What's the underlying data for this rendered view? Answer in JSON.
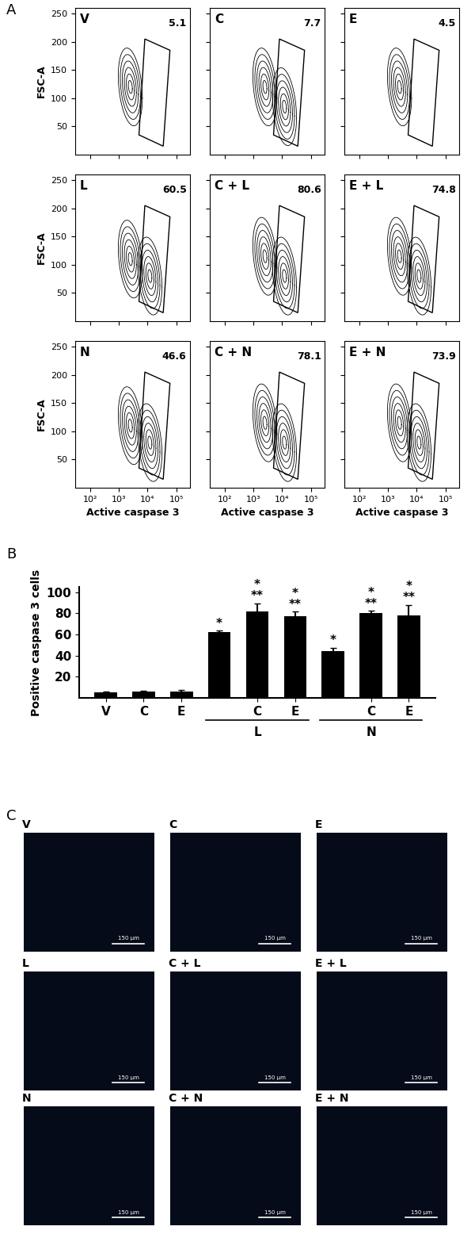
{
  "panel_labels": [
    "A",
    "B",
    "C"
  ],
  "chart_data": [
    {
      "type": "contour",
      "title": "V",
      "ylabel": "FSC-A",
      "tick_labels": "y",
      "log": "x",
      "xlim": [
        30,
        300000
      ],
      "ylim": [
        0,
        260
      ],
      "xticks": [
        {
          "value": 100,
          "label": "10²"
        },
        {
          "value": 1000,
          "label": "10³"
        },
        {
          "value": 10000,
          "label": "10⁴"
        },
        {
          "value": 100000,
          "label": "10⁵"
        }
      ],
      "yticks": [
        50,
        100,
        150,
        200,
        250
      ],
      "gate": [
        [
          5000,
          35
        ],
        [
          35000,
          15
        ],
        [
          60000,
          185
        ],
        [
          8000,
          205
        ]
      ],
      "gate_value": 5.1,
      "populations": [
        {
          "x": 2500,
          "y": 120
        }
      ]
    },
    {
      "type": "contour",
      "title": "C",
      "tick_labels": false,
      "log": "x",
      "xlim": [
        30,
        300000
      ],
      "ylim": [
        0,
        260
      ],
      "xticks": [
        {
          "value": 100,
          "label": "10²"
        },
        {
          "value": 1000,
          "label": "10³"
        },
        {
          "value": 10000,
          "label": "10⁴"
        },
        {
          "value": 100000,
          "label": "10⁵"
        }
      ],
      "yticks": [
        50,
        100,
        150,
        200,
        250
      ],
      "gate": [
        [
          5000,
          35
        ],
        [
          35000,
          15
        ],
        [
          60000,
          185
        ],
        [
          8000,
          205
        ]
      ],
      "gate_value": 7.7,
      "populations": [
        {
          "x": 2500,
          "y": 120
        },
        {
          "x": 12000,
          "y": 85
        }
      ]
    },
    {
      "type": "contour",
      "title": "E",
      "tick_labels": false,
      "log": "x",
      "xlim": [
        30,
        300000
      ],
      "ylim": [
        0,
        260
      ],
      "xticks": [
        {
          "value": 100,
          "label": "10²"
        },
        {
          "value": 1000,
          "label": "10³"
        },
        {
          "value": 10000,
          "label": "10⁴"
        },
        {
          "value": 100000,
          "label": "10⁵"
        }
      ],
      "yticks": [
        50,
        100,
        150,
        200,
        250
      ],
      "gate": [
        [
          5000,
          35
        ],
        [
          35000,
          15
        ],
        [
          60000,
          185
        ],
        [
          8000,
          205
        ]
      ],
      "gate_value": 4.5,
      "populations": [
        {
          "x": 2500,
          "y": 120
        }
      ]
    },
    {
      "type": "contour",
      "title": "L",
      "ylabel": "FSC-A",
      "tick_labels": "y",
      "log": "x",
      "xlim": [
        30,
        300000
      ],
      "ylim": [
        0,
        260
      ],
      "xticks": [
        {
          "value": 100,
          "label": "10²"
        },
        {
          "value": 1000,
          "label": "10³"
        },
        {
          "value": 10000,
          "label": "10⁴"
        },
        {
          "value": 100000,
          "label": "10⁵"
        }
      ],
      "yticks": [
        50,
        100,
        150,
        200,
        250
      ],
      "gate": [
        [
          5000,
          35
        ],
        [
          35000,
          15
        ],
        [
          60000,
          185
        ],
        [
          8000,
          205
        ]
      ],
      "gate_value": 60.5,
      "populations": [
        {
          "x": 2500,
          "y": 110
        },
        {
          "x": 12000,
          "y": 80
        }
      ]
    },
    {
      "type": "contour",
      "title": "C + L",
      "tick_labels": false,
      "log": "x",
      "xlim": [
        30,
        300000
      ],
      "ylim": [
        0,
        260
      ],
      "xticks": [
        {
          "value": 100,
          "label": "10²"
        },
        {
          "value": 1000,
          "label": "10³"
        },
        {
          "value": 10000,
          "label": "10⁴"
        },
        {
          "value": 100000,
          "label": "10⁵"
        }
      ],
      "yticks": [
        50,
        100,
        150,
        200,
        250
      ],
      "gate": [
        [
          5000,
          35
        ],
        [
          35000,
          15
        ],
        [
          60000,
          185
        ],
        [
          8000,
          205
        ]
      ],
      "gate_value": 80.6,
      "populations": [
        {
          "x": 2500,
          "y": 115
        },
        {
          "x": 12000,
          "y": 80
        }
      ]
    },
    {
      "type": "contour",
      "title": "E + L",
      "tick_labels": false,
      "log": "x",
      "xlim": [
        30,
        300000
      ],
      "ylim": [
        0,
        260
      ],
      "xticks": [
        {
          "value": 100,
          "label": "10²"
        },
        {
          "value": 1000,
          "label": "10³"
        },
        {
          "value": 10000,
          "label": "10⁴"
        },
        {
          "value": 100000,
          "label": "10⁵"
        }
      ],
      "yticks": [
        50,
        100,
        150,
        200,
        250
      ],
      "gate": [
        [
          5000,
          35
        ],
        [
          35000,
          15
        ],
        [
          60000,
          185
        ],
        [
          8000,
          205
        ]
      ],
      "gate_value": 74.8,
      "populations": [
        {
          "x": 2500,
          "y": 115
        },
        {
          "x": 12000,
          "y": 80
        }
      ]
    },
    {
      "type": "contour",
      "title": "N",
      "xlabel": "Active caspase 3",
      "ylabel": "FSC-A",
      "log": "x",
      "xlim": [
        30,
        300000
      ],
      "ylim": [
        0,
        260
      ],
      "xticks": [
        {
          "value": 100,
          "label": "10²"
        },
        {
          "value": 1000,
          "label": "10³"
        },
        {
          "value": 10000,
          "label": "10⁴"
        },
        {
          "value": 100000,
          "label": "10⁵"
        }
      ],
      "yticks": [
        50,
        100,
        150,
        200,
        250
      ],
      "gate": [
        [
          5000,
          35
        ],
        [
          35000,
          15
        ],
        [
          60000,
          185
        ],
        [
          8000,
          205
        ]
      ],
      "gate_value": 46.6,
      "populations": [
        {
          "x": 2500,
          "y": 110
        },
        {
          "x": 12000,
          "y": 80
        }
      ]
    },
    {
      "type": "contour",
      "title": "C + N",
      "xlabel": "Active caspase 3",
      "tick_labels": "x",
      "log": "x",
      "xlim": [
        30,
        300000
      ],
      "ylim": [
        0,
        260
      ],
      "xticks": [
        {
          "value": 100,
          "label": "10²"
        },
        {
          "value": 1000,
          "label": "10³"
        },
        {
          "value": 10000,
          "label": "10⁴"
        },
        {
          "value": 100000,
          "label": "10⁵"
        }
      ],
      "yticks": [
        50,
        100,
        150,
        200,
        250
      ],
      "gate": [
        [
          5000,
          35
        ],
        [
          35000,
          15
        ],
        [
          60000,
          185
        ],
        [
          8000,
          205
        ]
      ],
      "gate_value": 78.1,
      "populations": [
        {
          "x": 2500,
          "y": 115
        },
        {
          "x": 12000,
          "y": 80
        }
      ]
    },
    {
      "type": "contour",
      "title": "E + N",
      "xlabel": "Active caspase 3",
      "tick_labels": "x",
      "log": "x",
      "xlim": [
        30,
        300000
      ],
      "ylim": [
        0,
        260
      ],
      "xticks": [
        {
          "value": 100,
          "label": "10²"
        },
        {
          "value": 1000,
          "label": "10³"
        },
        {
          "value": 10000,
          "label": "10⁴"
        },
        {
          "value": 100000,
          "label": "10⁵"
        }
      ],
      "yticks": [
        50,
        100,
        150,
        200,
        250
      ],
      "gate": [
        [
          5000,
          35
        ],
        [
          35000,
          15
        ],
        [
          60000,
          185
        ],
        [
          8000,
          205
        ]
      ],
      "gate_value": 73.9,
      "populations": [
        {
          "x": 2500,
          "y": 115
        },
        {
          "x": 12000,
          "y": 80
        }
      ]
    },
    {
      "type": "bar",
      "ylabel": "Positive caspase 3 cells",
      "categories": [
        "V",
        "C",
        "E",
        null,
        "C",
        "E",
        null,
        "C",
        "E"
      ],
      "values": [
        5.5,
        6,
        6,
        62,
        82,
        77,
        44.5,
        80,
        78
      ],
      "errors": [
        0.5,
        1,
        1.5,
        1.5,
        7.5,
        4.5,
        3,
        2.5,
        10
      ],
      "significance": [
        [],
        [],
        [],
        [
          "*"
        ],
        [
          "*",
          "**"
        ],
        [
          "*",
          "**"
        ],
        [
          "*"
        ],
        [
          "*",
          "**"
        ],
        [
          "*",
          "**"
        ]
      ],
      "groups": [
        {
          "label": "L",
          "start": 3,
          "end": 5
        },
        {
          "label": "N",
          "start": 6,
          "end": 8
        }
      ],
      "color": "#000000",
      "ylim": [
        0,
        105
      ],
      "yticks": [
        20,
        40,
        60,
        80,
        100
      ]
    }
  ],
  "images": {
    "labels": [
      "V",
      "C",
      "E",
      "L",
      "C + L",
      "E + L",
      "N",
      "C + N",
      "E + N"
    ],
    "scale_bar": "150 μm"
  }
}
